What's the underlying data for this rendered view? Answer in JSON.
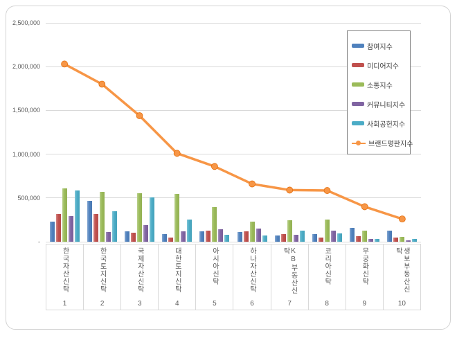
{
  "chart_data": {
    "type": "bar",
    "subtype": "grouped-bars-with-line-overlay",
    "grid": true,
    "legend_position": "right-inside",
    "categories": [
      "한국자산신탁",
      "한국토지신탁",
      "국제자산신탁",
      "대한토지신탁",
      "아시아신탁",
      "하나자산신탁",
      "KB부동산신탁",
      "코리아신탁",
      "무궁화신탁",
      "생보부동산신탁"
    ],
    "ranks": [
      "1",
      "2",
      "3",
      "4",
      "5",
      "6",
      "7",
      "8",
      "9",
      "10"
    ],
    "bar_series": [
      {
        "name": "참여지수",
        "color": "#4F81BD",
        "values": [
          230000,
          470000,
          120000,
          90000,
          120000,
          110000,
          70000,
          90000,
          160000,
          130000
        ]
      },
      {
        "name": "미디어지수",
        "color": "#C0504D",
        "values": [
          320000,
          315000,
          100000,
          50000,
          130000,
          120000,
          90000,
          45000,
          65000,
          45000
        ]
      },
      {
        "name": "소통지수",
        "color": "#9BBB59",
        "values": [
          610000,
          570000,
          555000,
          545000,
          395000,
          230000,
          245000,
          250000,
          130000,
          55000
        ]
      },
      {
        "name": "커뮤니티지수",
        "color": "#8064A2",
        "values": [
          295000,
          110000,
          190000,
          115000,
          145000,
          150000,
          80000,
          130000,
          35000,
          15000
        ]
      },
      {
        "name": "사회공헌지수",
        "color": "#4BACC6",
        "values": [
          585000,
          345000,
          505000,
          255000,
          80000,
          75000,
          125000,
          95000,
          30000,
          35000
        ]
      }
    ],
    "line_series": {
      "name": "브랜드평판지수",
      "color": "#F79646",
      "marker_border": "#E36C0A",
      "values": [
        2030000,
        1800000,
        1440000,
        1010000,
        860000,
        660000,
        590000,
        585000,
        400000,
        260000
      ]
    },
    "y_axis": {
      "min": 0,
      "max": 2500000,
      "tick_interval": 500000,
      "tick_labels": [
        "-",
        "500,000",
        "1,000,000",
        "1,500,000",
        "2,000,000",
        "2,500,000"
      ]
    }
  }
}
